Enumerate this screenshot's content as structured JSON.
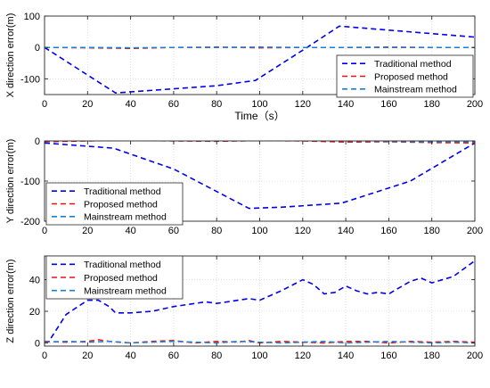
{
  "chart_data": [
    {
      "type": "line",
      "xlabel": "Time（s）",
      "ylabel": "X direction error(m)",
      "xlim": [
        0,
        200
      ],
      "ylim": [
        -150,
        100
      ],
      "xticks": [
        0,
        20,
        40,
        60,
        80,
        100,
        120,
        140,
        160,
        180,
        200
      ],
      "yticks": [
        -100,
        0,
        100
      ],
      "grid": true,
      "legend": "bottom-right",
      "series": [
        {
          "name": "Traditional method",
          "color": "#0000ee",
          "x": [
            0,
            33,
            80,
            98,
            122,
            137,
            200
          ],
          "y": [
            0,
            -145,
            -122,
            -105,
            0,
            68,
            33
          ]
        },
        {
          "name": "Proposed method",
          "color": "#ee1111",
          "x": [
            0,
            20,
            40,
            60,
            80,
            100,
            120,
            140,
            160,
            180,
            200
          ],
          "y": [
            0,
            -1,
            -3,
            0,
            1,
            -1,
            0,
            0,
            1,
            0,
            0
          ]
        },
        {
          "name": "Mainstream method",
          "color": "#1a7fd1",
          "x": [
            0,
            20,
            40,
            60,
            80,
            100,
            120,
            140,
            160,
            180,
            200
          ],
          "y": [
            0,
            0,
            -1,
            0,
            0,
            1,
            0,
            0,
            0,
            0,
            0
          ]
        }
      ]
    },
    {
      "type": "line",
      "xlabel": "",
      "ylabel": "Y direction error(m)",
      "xlim": [
        0,
        200
      ],
      "ylim": [
        -200,
        0
      ],
      "xticks": [
        0,
        20,
        40,
        60,
        80,
        100,
        120,
        140,
        160,
        180,
        200
      ],
      "yticks": [
        -200,
        -100,
        0
      ],
      "grid": true,
      "legend": "bottom-left",
      "series": [
        {
          "name": "Traditional method",
          "color": "#0000ee",
          "x": [
            0,
            32,
            60,
            95,
            110,
            138,
            170,
            200
          ],
          "y": [
            -5,
            -18,
            -70,
            -168,
            -165,
            -155,
            -100,
            -5
          ]
        },
        {
          "name": "Proposed method",
          "color": "#ee1111",
          "x": [
            0,
            20,
            40,
            60,
            80,
            100,
            120,
            140,
            160,
            180,
            200
          ],
          "y": [
            -2,
            0,
            2,
            0,
            -1,
            1,
            0,
            -3,
            -2,
            -4,
            -5
          ]
        },
        {
          "name": "Mainstream method",
          "color": "#1a7fd1",
          "x": [
            0,
            20,
            40,
            60,
            80,
            100,
            120,
            140,
            160,
            180,
            200
          ],
          "y": [
            0,
            1,
            3,
            1,
            0,
            2,
            1,
            0,
            -1,
            -2,
            -2
          ]
        }
      ]
    },
    {
      "type": "line",
      "xlabel": "",
      "ylabel": "Z direction error(m)",
      "xlim": [
        0,
        200
      ],
      "ylim": [
        -2,
        55
      ],
      "xticks": [
        0,
        20,
        40,
        60,
        80,
        100,
        120,
        140,
        160,
        180,
        200
      ],
      "yticks": [
        0,
        20,
        40
      ],
      "grid": true,
      "legend": "top-left",
      "series": [
        {
          "name": "Traditional method",
          "color": "#0000ee",
          "x": [
            3,
            10,
            20,
            25,
            30,
            33,
            40,
            50,
            60,
            70,
            75,
            80,
            90,
            95,
            100,
            110,
            120,
            125,
            130,
            135,
            140,
            145,
            150,
            155,
            160,
            170,
            175,
            180,
            190,
            200
          ],
          "y": [
            3,
            18,
            27,
            27,
            23,
            19,
            19,
            20,
            23,
            25,
            26,
            25,
            27,
            28,
            27,
            33,
            40,
            37,
            31,
            32,
            36,
            33,
            31,
            32,
            31,
            39,
            41,
            38,
            42,
            52
          ]
        },
        {
          "name": "Proposed method",
          "color": "#ee1111",
          "x": [
            0,
            10,
            20,
            25,
            30,
            40,
            50,
            60,
            70,
            80,
            90,
            95,
            100,
            110,
            120,
            130,
            140,
            150,
            160,
            170,
            180,
            190,
            200
          ],
          "y": [
            1,
            0.5,
            1,
            2,
            1,
            0,
            1,
            1.5,
            0,
            1,
            0.5,
            1.5,
            0,
            1,
            0.5,
            0,
            1,
            1,
            0,
            1,
            0.5,
            1,
            0.5
          ]
        },
        {
          "name": "Mainstream method",
          "color": "#1a7fd1",
          "x": [
            0,
            10,
            20,
            30,
            40,
            50,
            60,
            70,
            80,
            90,
            100,
            110,
            120,
            130,
            140,
            150,
            160,
            170,
            180,
            190,
            200
          ],
          "y": [
            0.5,
            1,
            0.5,
            1,
            0,
            0.5,
            1,
            0.5,
            0,
            1,
            0.5,
            0,
            0.5,
            1,
            0,
            0.5,
            1,
            0.5,
            0,
            0.5,
            0
          ]
        }
      ]
    }
  ]
}
